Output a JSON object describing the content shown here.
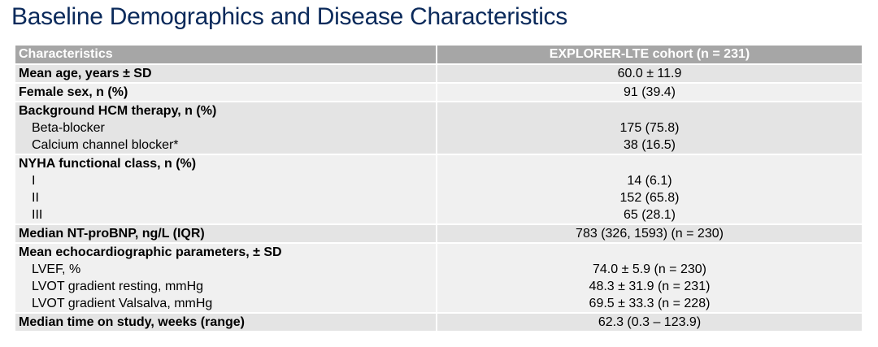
{
  "title": "Baseline Demographics and Disease Characteristics",
  "table": {
    "headers": [
      "Characteristics",
      "EXPLORER-LTE cohort (n = 231)"
    ],
    "groups": [
      {
        "rows": [
          {
            "label": "Mean age, years ± SD",
            "value": "60.0 ± 11.9",
            "bold": true
          }
        ]
      },
      {
        "rows": [
          {
            "label": "Female sex, n (%)",
            "value": "91 (39.4)",
            "bold": true
          }
        ]
      },
      {
        "rows": [
          {
            "label": "Background HCM therapy, n (%)",
            "value": "",
            "bold": true
          },
          {
            "label": "Beta-blocker",
            "value": "175 (75.8)",
            "bold": false
          },
          {
            "label": "Calcium channel blocker*",
            "value": "38 (16.5)",
            "bold": false
          }
        ]
      },
      {
        "rows": [
          {
            "label": "NYHA functional class, n (%)",
            "value": "",
            "bold": true
          },
          {
            "label": "I",
            "value": "14 (6.1)",
            "bold": false
          },
          {
            "label": "II",
            "value": "152 (65.8)",
            "bold": false
          },
          {
            "label": "III",
            "value": "65 (28.1)",
            "bold": false
          }
        ]
      },
      {
        "rows": [
          {
            "label": "Median NT-proBNP, ng/L (IQR)",
            "value": "783 (326, 1593) (n = 230)",
            "bold": true
          }
        ]
      },
      {
        "rows": [
          {
            "label": "Mean echocardiographic parameters, ± SD",
            "value": "",
            "bold": true
          },
          {
            "label": "LVEF, %",
            "value": "74.0 ± 5.9 (n = 230)",
            "bold": false
          },
          {
            "label": "LVOT gradient resting, mmHg",
            "value": "48.3 ± 31.9 (n = 231)",
            "bold": false
          },
          {
            "label": "LVOT gradient Valsalva, mmHg",
            "value": "69.5 ± 33.3 (n = 228)",
            "bold": false
          }
        ]
      },
      {
        "rows": [
          {
            "label": "Median time on study, weeks (range)",
            "value": "62.3 (0.3 – 123.9)",
            "bold": true
          }
        ]
      }
    ]
  },
  "colors": {
    "title": "#0b2a5b",
    "header_bg": "#a6a6a6",
    "band_dark": "#e4e4e4",
    "band_light": "#f0f0f0"
  }
}
